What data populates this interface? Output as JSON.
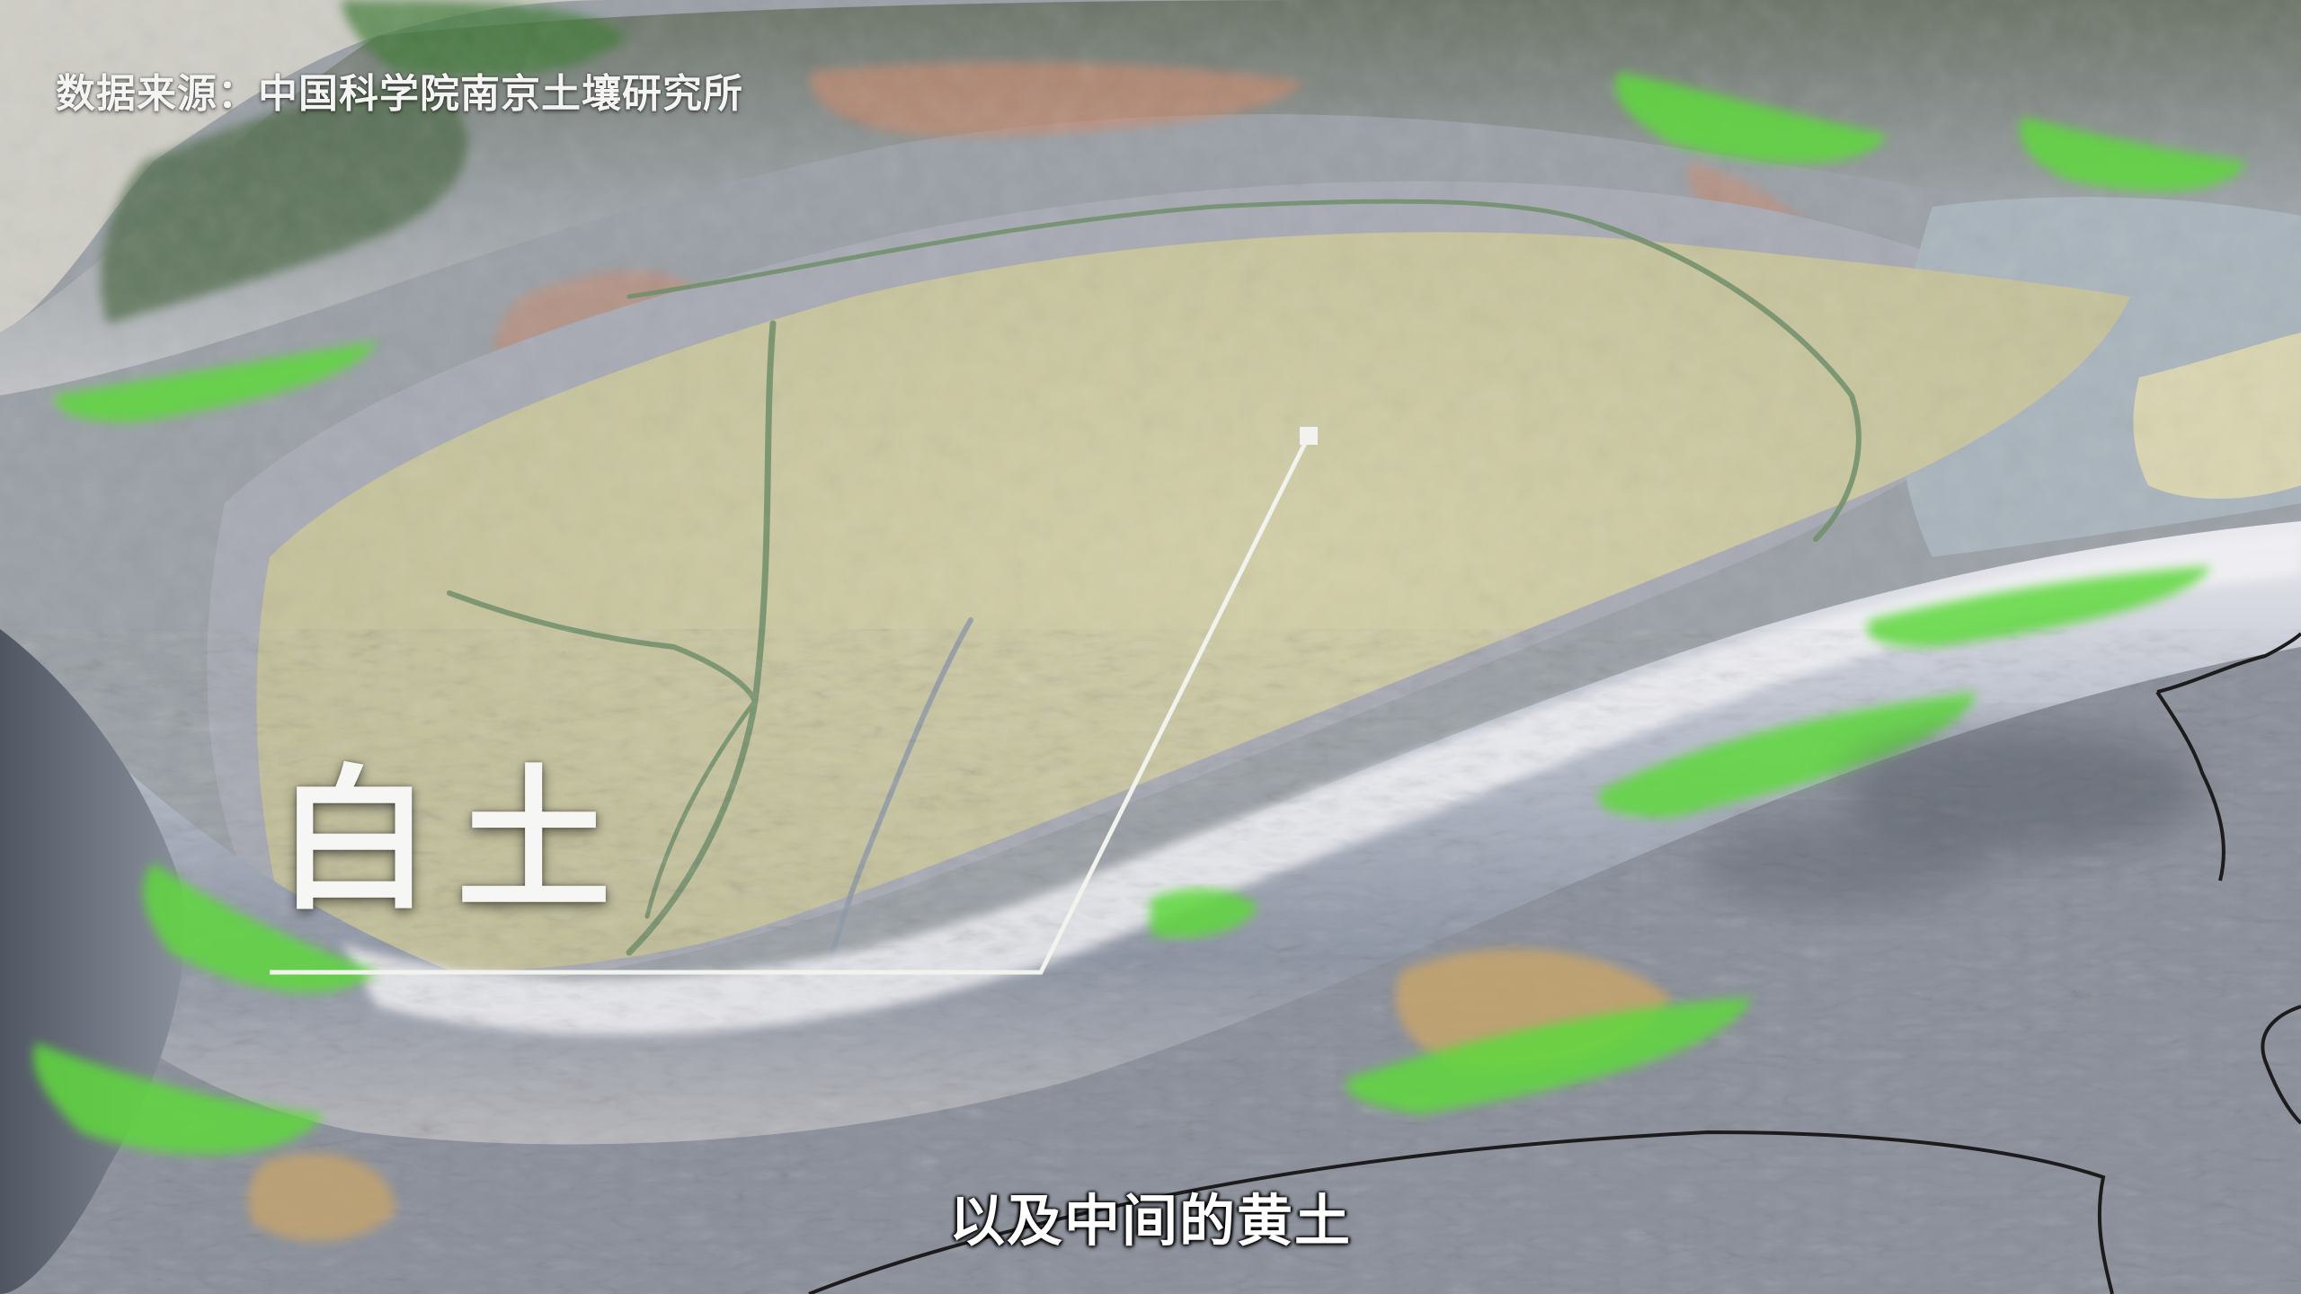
{
  "source_credit": "数据来源：中国科学院南京土壤研究所",
  "soil_label": "白土",
  "subtitle": "以及中间的黄土",
  "colors": {
    "desert_basin": "#c9c7a0",
    "mountain_snow": "#dcdce6",
    "vegetation_green": "#5fd83c",
    "mountain_shadow": "#5e6470",
    "red_soil": "#c98a6e",
    "gray_soil": "#a8aab4",
    "blue_gray_soil": "#a9b4bc",
    "callout_line": "#f2f2ee"
  }
}
